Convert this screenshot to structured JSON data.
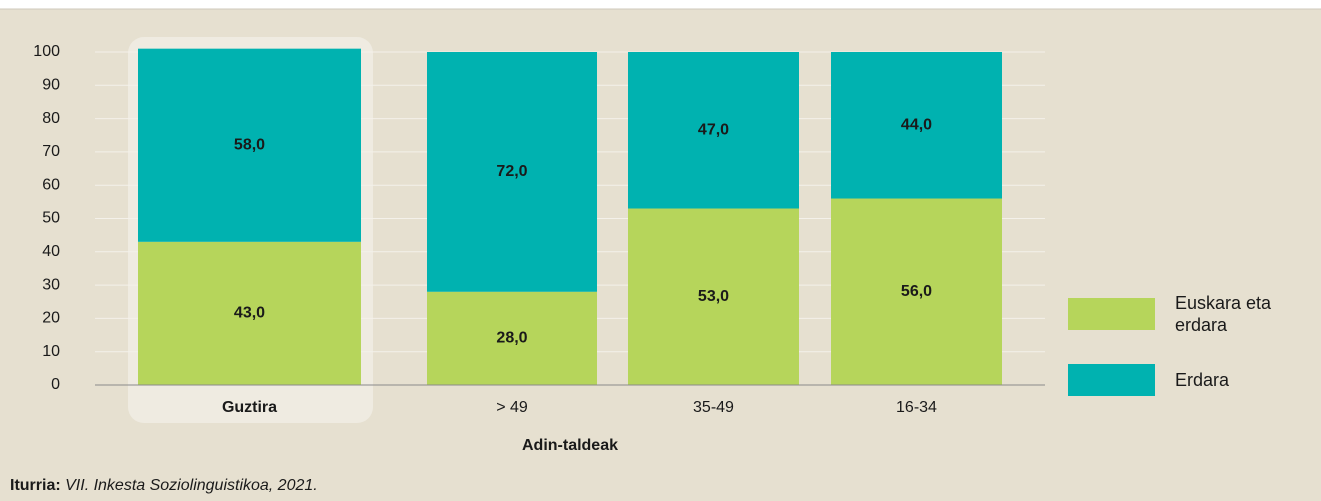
{
  "chart_data": {
    "type": "stacked_bar",
    "x_label": "Adin-taldeak",
    "categories": [
      "Guztira",
      "> 49",
      "35-49",
      "16-34"
    ],
    "series": [
      {
        "name": "Euskara eta erdara",
        "color": "#b6d55b",
        "values": [
          43,
          28,
          53,
          56
        ],
        "value_labels": [
          "43,0",
          "28,0",
          "53,0",
          "56,0"
        ]
      },
      {
        "name": "Erdara",
        "color": "#00b2b0",
        "values": [
          58,
          72,
          47,
          44
        ],
        "value_labels": [
          "58,0",
          "72,0",
          "47,0",
          "44,0"
        ]
      }
    ],
    "ylim": [
      0,
      100
    ],
    "yticks": [
      0,
      10,
      20,
      30,
      40,
      50,
      60,
      70,
      80,
      90,
      100
    ],
    "grid": true,
    "legend": "right",
    "source_label": "Iturria:",
    "source": "VII. Inkesta Soziolinguistikoa, 2021."
  }
}
